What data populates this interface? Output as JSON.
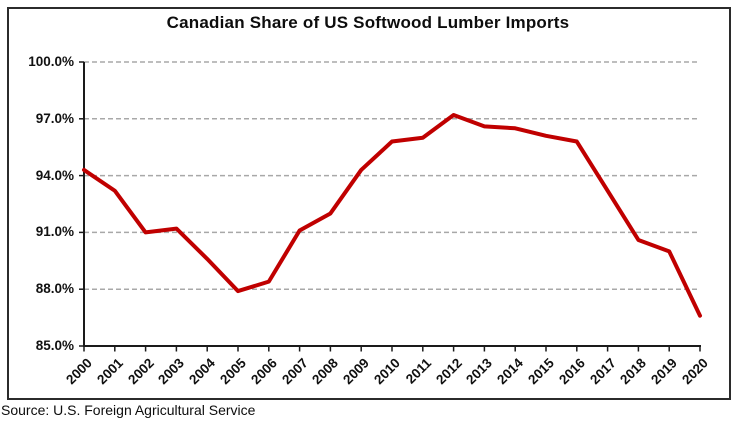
{
  "page": {
    "background": "#ffffff",
    "frame_border_color": "#2b2b2b"
  },
  "chart": {
    "title": "Canadian Share of US Softwood Lumber Imports",
    "source_note": "Source: U.S. Foreign Agricultural Service"
  },
  "chart_data": {
    "type": "line",
    "title": "Canadian Share of US Softwood Lumber Imports",
    "categories": [
      "2000",
      "2001",
      "2002",
      "2003",
      "2004",
      "2005",
      "2006",
      "2007",
      "2008",
      "2009",
      "2010",
      "2011",
      "2012",
      "2013",
      "2014",
      "2015",
      "2016",
      "2017",
      "2018",
      "2019",
      "2020"
    ],
    "series": [
      {
        "name": "Canadian share of US softwood lumber imports",
        "color": "#C00000",
        "values": [
          94.3,
          93.2,
          91.0,
          91.2,
          89.6,
          87.9,
          88.4,
          91.1,
          92.0,
          94.3,
          95.8,
          96.0,
          97.2,
          96.6,
          96.5,
          96.1,
          95.8,
          93.2,
          90.6,
          90.0,
          86.6
        ]
      }
    ],
    "xlabel": "",
    "ylabel": "",
    "ylim": [
      85,
      100
    ],
    "yticks": [
      85,
      88,
      91,
      94,
      97,
      100
    ],
    "ytick_labels": [
      "85.0%",
      "88.0%",
      "91.0%",
      "94.0%",
      "97.0%",
      "100.0%"
    ],
    "grid": "horizontal dashed",
    "grid_color": "#a8a8a8",
    "axis_color": "#1a1a1a",
    "legend": "none"
  }
}
